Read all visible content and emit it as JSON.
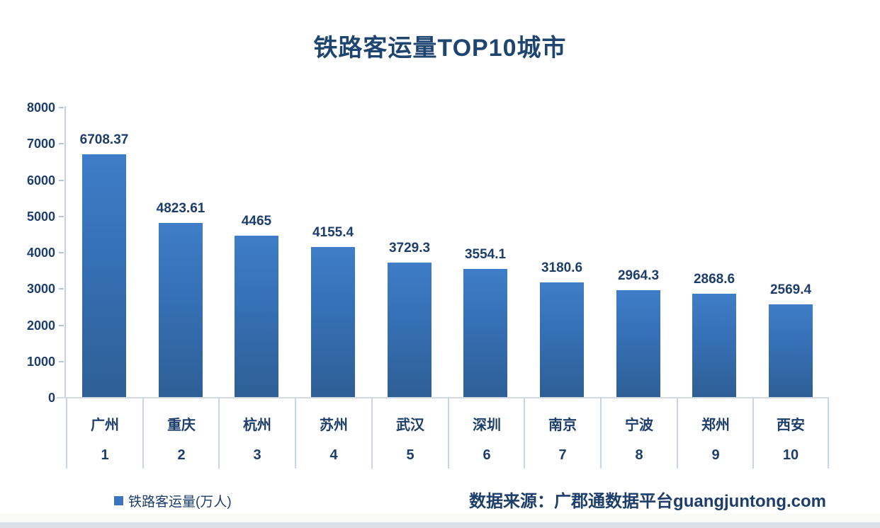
{
  "page": {
    "title": "铁路客运量TOP10城市",
    "legend_label": "铁路客运量(万人)",
    "source_label": "数据来源：广郡通数据平台guangjuntong.com",
    "colors": {
      "title_text": "#1e4470",
      "label_text": "#1d3e6b",
      "bar_top": "#3f7dc8",
      "bar_bottom": "#2e5f95",
      "legend_marker": "#3a76be",
      "axis_line": "#c2d1e6",
      "separator_line": "#c7d6ea",
      "baseline": "#d4dae2"
    }
  },
  "chart_data": {
    "type": "bar",
    "title": "铁路客运量TOP10城市",
    "series_name": "铁路客运量(万人)",
    "categories": [
      "广州",
      "重庆",
      "杭州",
      "苏州",
      "武汉",
      "深圳",
      "南京",
      "宁波",
      "郑州",
      "西安"
    ],
    "ranks": [
      "1",
      "2",
      "3",
      "4",
      "5",
      "6",
      "7",
      "8",
      "9",
      "10"
    ],
    "values": [
      6708.37,
      4823.61,
      4465,
      4155.4,
      3729.3,
      3554.1,
      3180.6,
      2964.3,
      2868.6,
      2569.4
    ],
    "value_labels": [
      "6708.37",
      "4823.61",
      "4465",
      "4155.4",
      "3729.3",
      "3554.1",
      "3180.6",
      "2964.3",
      "2868.6",
      "2569.4"
    ],
    "xlabel": "",
    "ylabel": "",
    "ylim": [
      0,
      8000
    ],
    "yticks": [
      "8000",
      "7000",
      "6000",
      "5000",
      "4000",
      "3000",
      "2000",
      "1000",
      "0"
    ],
    "ytick_values": [
      8000,
      7000,
      6000,
      5000,
      4000,
      3000,
      2000,
      1000,
      0
    ],
    "grid": false,
    "legend_position": "bottom-left",
    "source": "数据来源：广郡通数据平台guangjuntong.com"
  }
}
